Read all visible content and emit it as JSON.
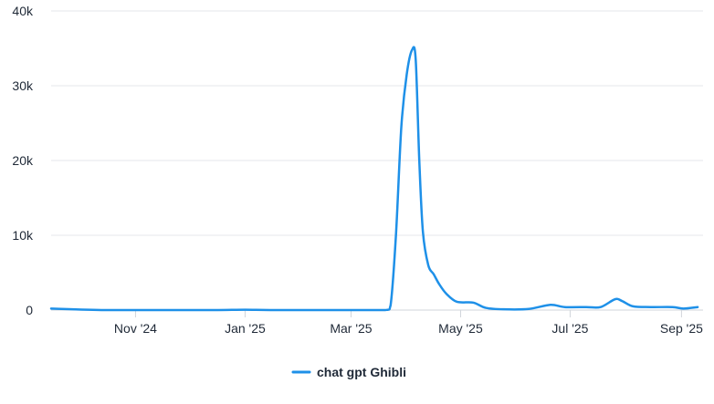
{
  "chart_data": {
    "type": "line",
    "title": "",
    "xlabel": "",
    "ylabel": "",
    "series": [
      {
        "name": "chat gpt Ghibli",
        "color": "#1e90e8",
        "points": [
          [
            "2024-09-15",
            200
          ],
          [
            "2024-10-15",
            0
          ],
          [
            "2024-11-15",
            0
          ],
          [
            "2024-12-15",
            0
          ],
          [
            "2025-01-01",
            50
          ],
          [
            "2025-01-15",
            0
          ],
          [
            "2025-02-15",
            0
          ],
          [
            "2025-03-01",
            0
          ],
          [
            "2025-03-20",
            0
          ],
          [
            "2025-03-23",
            600
          ],
          [
            "2025-03-26",
            10000
          ],
          [
            "2025-03-29",
            24500
          ],
          [
            "2025-04-01",
            31500
          ],
          [
            "2025-04-04",
            34800
          ],
          [
            "2025-04-06",
            33500
          ],
          [
            "2025-04-08",
            20000
          ],
          [
            "2025-04-10",
            10500
          ],
          [
            "2025-04-13",
            6000
          ],
          [
            "2025-04-16",
            4800
          ],
          [
            "2025-04-19",
            3500
          ],
          [
            "2025-04-23",
            2200
          ],
          [
            "2025-04-29",
            1100
          ],
          [
            "2025-05-08",
            1000
          ],
          [
            "2025-05-15",
            300
          ],
          [
            "2025-05-25",
            100
          ],
          [
            "2025-06-08",
            150
          ],
          [
            "2025-06-20",
            700
          ],
          [
            "2025-06-28",
            400
          ],
          [
            "2025-07-10",
            400
          ],
          [
            "2025-07-18",
            400
          ],
          [
            "2025-07-26",
            1450
          ],
          [
            "2025-07-30",
            1200
          ],
          [
            "2025-08-05",
            500
          ],
          [
            "2025-08-15",
            400
          ],
          [
            "2025-08-27",
            400
          ],
          [
            "2025-09-02",
            200
          ],
          [
            "2025-09-10",
            400
          ]
        ]
      }
    ],
    "x_ticks": [
      "Nov '24",
      "Jan '25",
      "Mar '25",
      "May '25",
      "Jul '25",
      "Sep '25"
    ],
    "x_tick_dates": [
      "2024-11-01",
      "2025-01-01",
      "2025-03-01",
      "2025-05-01",
      "2025-07-01",
      "2025-09-01"
    ],
    "x_range": [
      "2024-09-15",
      "2025-09-13"
    ],
    "y_ticks": [
      "0",
      "10k",
      "20k",
      "30k",
      "40k"
    ],
    "y_tick_values": [
      0,
      10000,
      20000,
      30000,
      40000
    ],
    "ylim": [
      0,
      40000
    ],
    "grid": true,
    "grid_color": "#e5e7eb",
    "axis_color": "#d1d5db",
    "legend_position": "bottom-center"
  }
}
